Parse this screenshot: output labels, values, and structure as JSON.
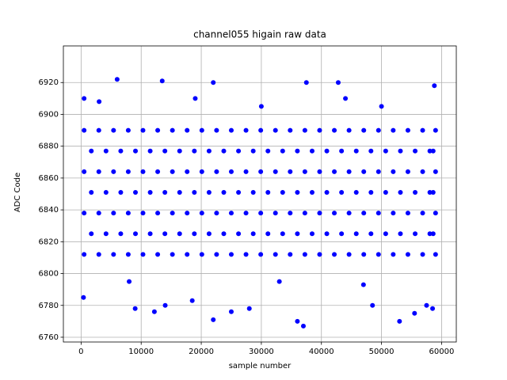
{
  "chart_data": {
    "type": "scatter",
    "title": "channel055 higain raw data",
    "xlabel": "sample number",
    "ylabel": "ADC Code",
    "color": "#0000ff",
    "grid": true,
    "xlim": [
      -2950,
      62450
    ],
    "ylim": [
      6757,
      6943
    ],
    "xticks": [
      0,
      10000,
      20000,
      30000,
      40000,
      50000,
      60000
    ],
    "yticks": [
      6760,
      6780,
      6800,
      6820,
      6840,
      6860,
      6880,
      6900,
      6920
    ],
    "x": [
      500,
      2950,
      5400,
      7850,
      10300,
      12750,
      15200,
      17650,
      20100,
      22550,
      25000,
      27450,
      29900,
      32350,
      34800,
      37250,
      39700,
      42150,
      44600,
      47050,
      49500,
      51950,
      54400,
      56850,
      59000,
      1700,
      4150,
      6600,
      9050,
      11500,
      13950,
      16400,
      18850,
      21300,
      23750,
      26200,
      28650,
      31100,
      33550,
      36000,
      38450,
      40900,
      43350,
      45800,
      48250,
      50700,
      53150,
      55600,
      58050,
      58600,
      500,
      2950,
      5400,
      7850,
      10300,
      12750,
      15200,
      17650,
      20100,
      22550,
      25000,
      27450,
      29900,
      32350,
      34800,
      37250,
      39700,
      42150,
      44600,
      47050,
      49500,
      51950,
      54400,
      56850,
      59000,
      1700,
      4150,
      6600,
      9050,
      11500,
      13950,
      16400,
      18850,
      21300,
      23750,
      26200,
      28650,
      31100,
      33550,
      36000,
      38450,
      40900,
      43350,
      45800,
      48250,
      50700,
      53150,
      55600,
      58050,
      58600,
      500,
      2950,
      5400,
      7850,
      10300,
      12750,
      15200,
      17650,
      20100,
      22550,
      25000,
      27450,
      29900,
      32350,
      34800,
      37250,
      39700,
      42150,
      44600,
      47050,
      49500,
      51950,
      54400,
      56850,
      59000,
      1700,
      4150,
      6600,
      9050,
      11500,
      13950,
      16400,
      18850,
      21300,
      23750,
      26200,
      28650,
      31100,
      33550,
      36000,
      38450,
      40900,
      43350,
      45800,
      48250,
      50700,
      53150,
      55600,
      58050,
      58600,
      500,
      2950,
      5400,
      7850,
      10300,
      12750,
      15200,
      17650,
      20100,
      22550,
      25000,
      27450,
      29900,
      32350,
      34800,
      37250,
      39700,
      42150,
      44600,
      47050,
      49500,
      51950,
      54400,
      56850,
      59000,
      6000,
      13500,
      22000,
      37500,
      42800,
      58800,
      22000,
      36000,
      37000,
      53000,
      12200,
      9000,
      14000,
      18500,
      25000,
      28000,
      48500,
      55500,
      57500,
      58500,
      400,
      500,
      3000,
      19000,
      44000,
      30000,
      50000,
      8000,
      33000,
      47000
    ],
    "y": [
      6812,
      6812,
      6812,
      6812,
      6812,
      6812,
      6812,
      6812,
      6812,
      6812,
      6812,
      6812,
      6812,
      6812,
      6812,
      6812,
      6812,
      6812,
      6812,
      6812,
      6812,
      6812,
      6812,
      6812,
      6812,
      6825,
      6825,
      6825,
      6825,
      6825,
      6825,
      6825,
      6825,
      6825,
      6825,
      6825,
      6825,
      6825,
      6825,
      6825,
      6825,
      6825,
      6825,
      6825,
      6825,
      6825,
      6825,
      6825,
      6825,
      6825,
      6838,
      6838,
      6838,
      6838,
      6838,
      6838,
      6838,
      6838,
      6838,
      6838,
      6838,
      6838,
      6838,
      6838,
      6838,
      6838,
      6838,
      6838,
      6838,
      6838,
      6838,
      6838,
      6838,
      6838,
      6838,
      6851,
      6851,
      6851,
      6851,
      6851,
      6851,
      6851,
      6851,
      6851,
      6851,
      6851,
      6851,
      6851,
      6851,
      6851,
      6851,
      6851,
      6851,
      6851,
      6851,
      6851,
      6851,
      6851,
      6851,
      6851,
      6864,
      6864,
      6864,
      6864,
      6864,
      6864,
      6864,
      6864,
      6864,
      6864,
      6864,
      6864,
      6864,
      6864,
      6864,
      6864,
      6864,
      6864,
      6864,
      6864,
      6864,
      6864,
      6864,
      6864,
      6864,
      6877,
      6877,
      6877,
      6877,
      6877,
      6877,
      6877,
      6877,
      6877,
      6877,
      6877,
      6877,
      6877,
      6877,
      6877,
      6877,
      6877,
      6877,
      6877,
      6877,
      6877,
      6877,
      6877,
      6877,
      6877,
      6890,
      6890,
      6890,
      6890,
      6890,
      6890,
      6890,
      6890,
      6890,
      6890,
      6890,
      6890,
      6890,
      6890,
      6890,
      6890,
      6890,
      6890,
      6890,
      6890,
      6890,
      6890,
      6890,
      6890,
      6890,
      6922,
      6921,
      6920,
      6920,
      6920,
      6918,
      6771,
      6770,
      6767,
      6770,
      6776,
      6778,
      6780,
      6783,
      6776,
      6778,
      6780,
      6775,
      6780,
      6778,
      6785,
      6910,
      6908,
      6910,
      6910,
      6905,
      6905,
      6795,
      6795,
      6793
    ]
  }
}
